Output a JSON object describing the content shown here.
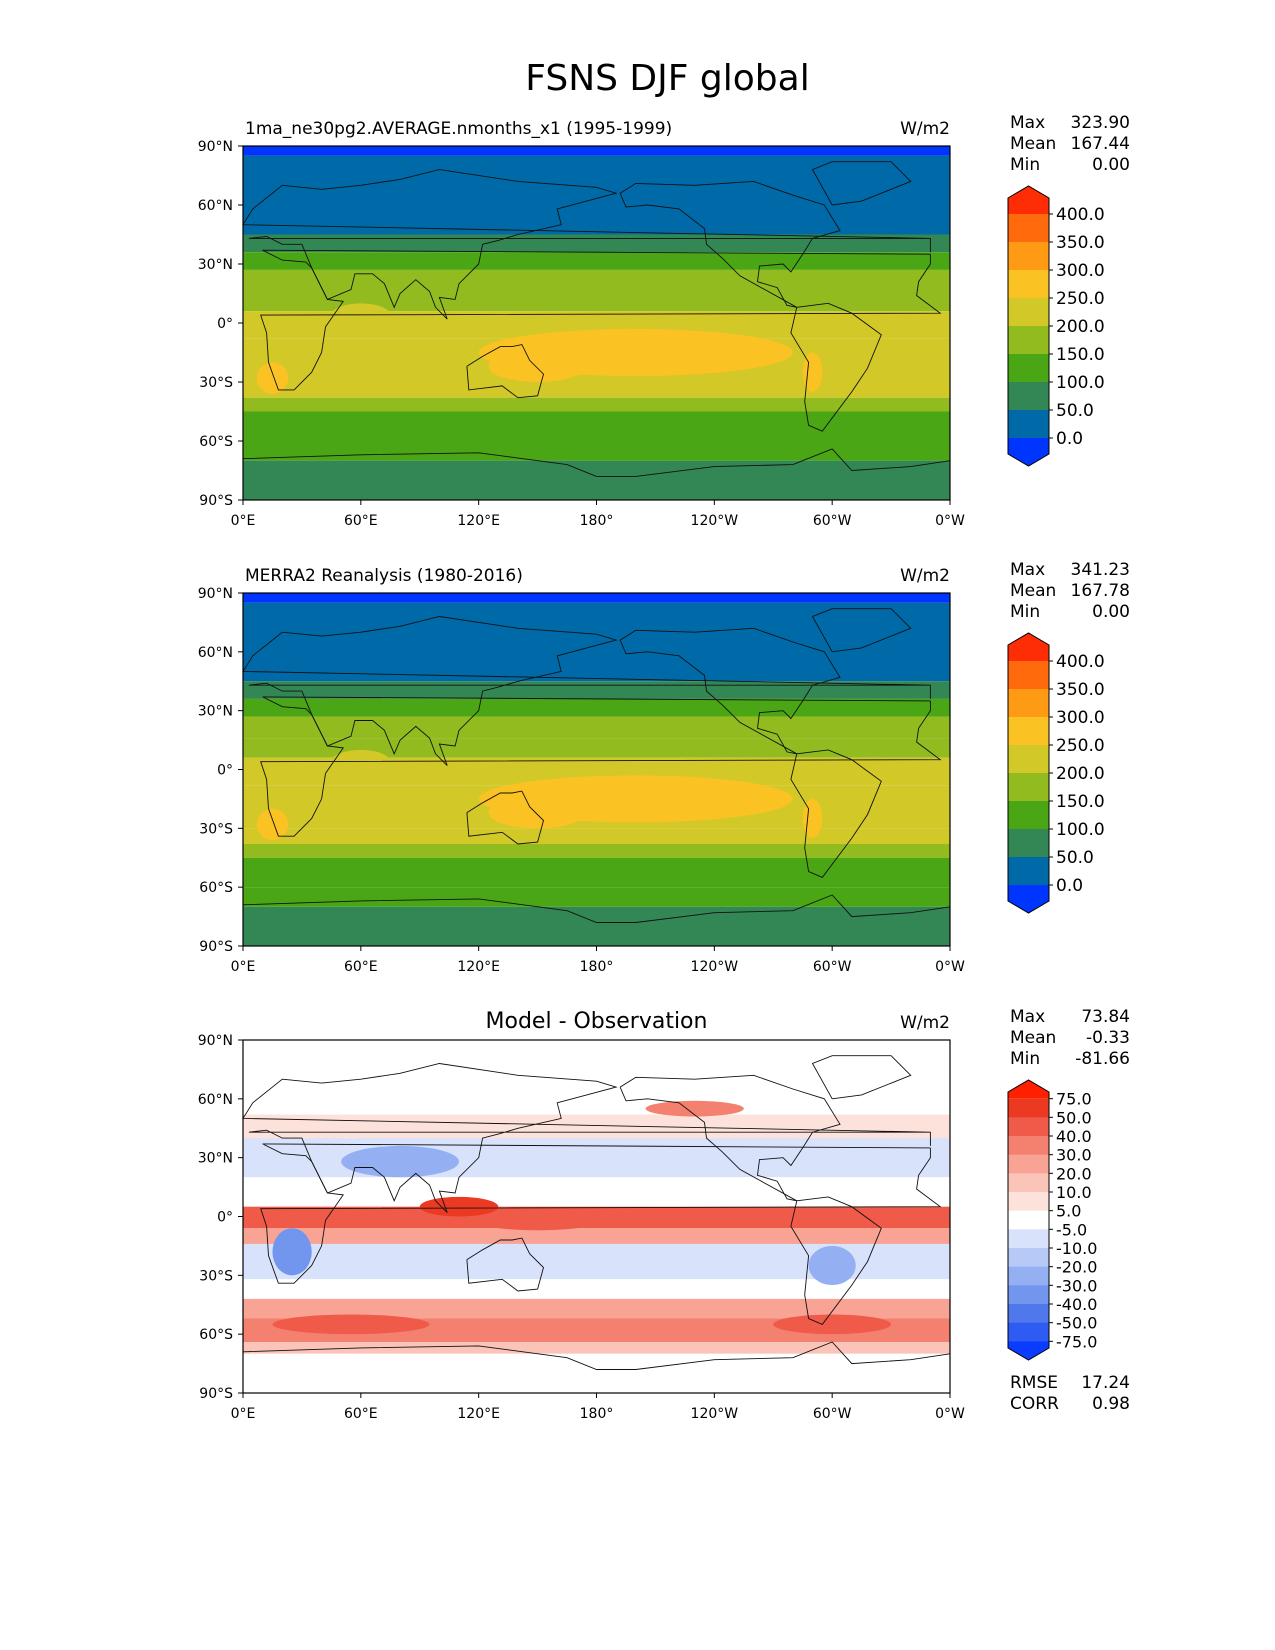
{
  "figure": {
    "title": "FSNS DJF global"
  },
  "axes": {
    "lat_ticks": [
      "90°N",
      "60°N",
      "30°N",
      "0°",
      "30°S",
      "60°S",
      "90°S"
    ],
    "lon_ticks": [
      "0°E",
      "60°E",
      "120°E",
      "180°",
      "120°W",
      "60°W",
      "0°W"
    ]
  },
  "chart_data": [
    {
      "type": "heatmap",
      "title": "1ma_ne30pg2.AVERAGE.nmonths_x1 (1995-1999)",
      "units": "W/m2",
      "stats": {
        "Max": "323.90",
        "Mean": "167.44",
        "Min": "0.00"
      },
      "stat_labels": [
        "Max",
        "Mean",
        "Min"
      ],
      "colorbar": {
        "levels": [
          "0.0",
          "50.0",
          "100.0",
          "150.0",
          "200.0",
          "250.0",
          "300.0",
          "350.0",
          "400.0"
        ],
        "colors": [
          "#0034ff",
          "#006aa8",
          "#338754",
          "#4aa614",
          "#91bb1e",
          "#d2c828",
          "#fbc224",
          "#ff9a15",
          "#ff6a0d",
          "#ff2d05"
        ]
      },
      "xlim": [
        0,
        360
      ],
      "ylim": [
        -90,
        90
      ]
    },
    {
      "type": "heatmap",
      "title": "MERRA2 Reanalysis (1980-2016)",
      "units": "W/m2",
      "stats": {
        "Max": "341.23",
        "Mean": "167.78",
        "Min": "0.00"
      },
      "stat_labels": [
        "Max",
        "Mean",
        "Min"
      ],
      "colorbar": {
        "levels": [
          "0.0",
          "50.0",
          "100.0",
          "150.0",
          "200.0",
          "250.0",
          "300.0",
          "350.0",
          "400.0"
        ],
        "colors": [
          "#0034ff",
          "#006aa8",
          "#338754",
          "#4aa614",
          "#91bb1e",
          "#d2c828",
          "#fbc224",
          "#ff9a15",
          "#ff6a0d",
          "#ff2d05"
        ]
      },
      "xlim": [
        0,
        360
      ],
      "ylim": [
        -90,
        90
      ]
    },
    {
      "type": "heatmap",
      "title": "Model - Observation",
      "units": "W/m2",
      "stats": {
        "Max": "73.84",
        "Mean": "-0.33",
        "Min": "-81.66"
      },
      "stat_labels": [
        "Max",
        "Mean",
        "Min"
      ],
      "extra_stats": {
        "RMSE": "17.24",
        "CORR": "0.98"
      },
      "extra_labels": [
        "RMSE",
        "CORR"
      ],
      "colorbar": {
        "levels": [
          "-75.0",
          "-50.0",
          "-40.0",
          "-30.0",
          "-20.0",
          "-10.0",
          "-5.0",
          "5.0",
          "10.0",
          "20.0",
          "30.0",
          "40.0",
          "50.0",
          "75.0"
        ],
        "colors": [
          "#0a3cff",
          "#2e5cf2",
          "#4f78ec",
          "#7295ee",
          "#94b0f3",
          "#b7caf7",
          "#d9e2fb",
          "#ffffff",
          "#fde2dc",
          "#fbc4b8",
          "#f8a394",
          "#f4806f",
          "#f05a49",
          "#ec3a22",
          "#ff2000"
        ]
      },
      "xlim": [
        0,
        360
      ],
      "ylim": [
        -90,
        90
      ]
    }
  ]
}
